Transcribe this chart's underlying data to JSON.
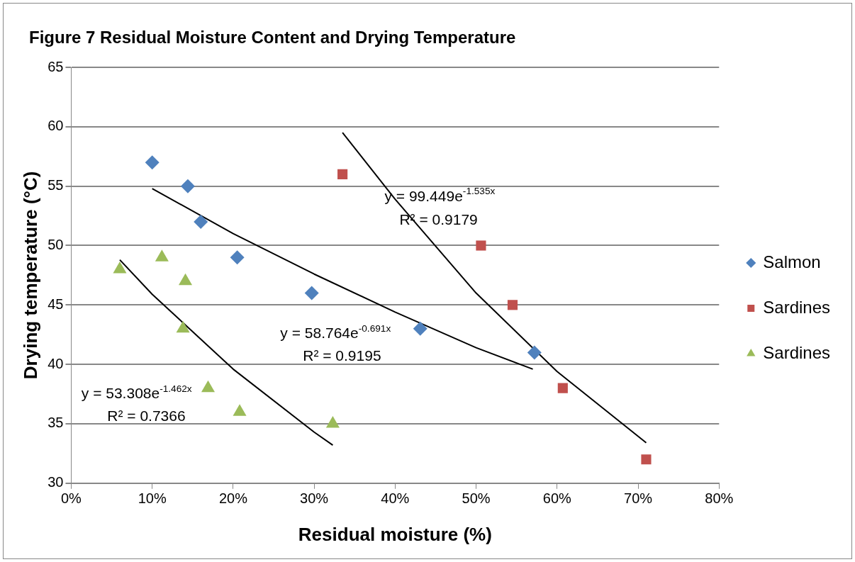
{
  "chart_data": {
    "type": "scatter",
    "title": "Figure 7  Residual Moisture Content and Drying Temperature",
    "xlabel": "Residual moisture (%)",
    "ylabel": "Drying temperature (°C)",
    "xlim": [
      0,
      80
    ],
    "xticks": [
      {
        "value": 0,
        "label": "0%"
      },
      {
        "value": 10,
        "label": "10%"
      },
      {
        "value": 20,
        "label": "20%"
      },
      {
        "value": 30,
        "label": "30%"
      },
      {
        "value": 40,
        "label": "40%"
      },
      {
        "value": 50,
        "label": "50%"
      },
      {
        "value": 60,
        "label": "60%"
      },
      {
        "value": 70,
        "label": "70%"
      },
      {
        "value": 80,
        "label": "80%"
      }
    ],
    "ylim": [
      30,
      65
    ],
    "yticks": [
      30,
      35,
      40,
      45,
      50,
      55,
      60,
      65
    ],
    "grid": "y",
    "legend": "right",
    "series": [
      {
        "name": "Salmon",
        "color": "#4f81bd",
        "marker": "diamond",
        "x": [
          10.0,
          14.4,
          16.0,
          20.5,
          29.7,
          43.1,
          57.2
        ],
        "values": [
          57,
          55,
          52,
          49,
          46,
          43,
          41
        ]
      },
      {
        "name": "Sardines",
        "color": "#c0504d",
        "marker": "square",
        "x": [
          33.5,
          50.6,
          54.5,
          60.7,
          71.0
        ],
        "values": [
          56,
          50,
          45,
          38,
          32
        ]
      },
      {
        "name": "Sardines",
        "color": "#9bbb59",
        "marker": "triangle",
        "x": [
          6.0,
          11.2,
          14.1,
          13.8,
          16.9,
          20.8,
          32.3
        ],
        "values": [
          48,
          49,
          47,
          43,
          38,
          36,
          35
        ]
      },
      {
        "type": "line",
        "color": "#000000",
        "marker": "none",
        "x": [
          10,
          20,
          30,
          40,
          50,
          57
        ],
        "values": [
          54.8,
          51.0,
          47.6,
          44.4,
          41.4,
          39.6
        ]
      },
      {
        "type": "line",
        "color": "#000000",
        "marker": "none",
        "x": [
          33.5,
          40,
          50,
          60,
          71
        ],
        "values": [
          59.5,
          53.9,
          46.0,
          39.4,
          33.4
        ]
      },
      {
        "type": "line",
        "color": "#000000",
        "marker": "none",
        "x": [
          6,
          10,
          20,
          30,
          32.3
        ],
        "values": [
          48.8,
          45.9,
          39.6,
          34.3,
          33.2
        ]
      }
    ],
    "annotations": [
      "y = 58.764e$^{-0.691x}$",
      "R² = 0.9195",
      "y = 99.449e$^{-1.535x}$",
      "R² = 0.9179",
      "y = 53.308e$^{-1.462x}$",
      "R² = 0.7366"
    ]
  }
}
